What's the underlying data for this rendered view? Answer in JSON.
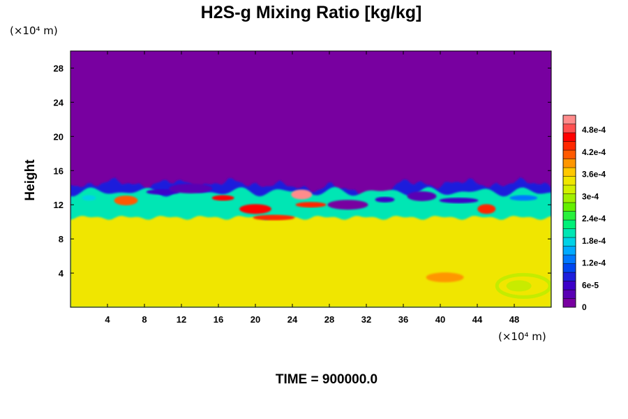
{
  "chart_data": {
    "type": "heatmap",
    "title": "H2S-g Mixing Ratio [kg/kg]",
    "xlabel": "",
    "ylabel": "Height",
    "x_unit": "(×10⁴ m)",
    "y_unit": "(×10⁴ m)",
    "xlim": [
      0,
      52
    ],
    "ylim": [
      0,
      30
    ],
    "x_ticks": [
      {
        "value": 4,
        "label": "4"
      },
      {
        "value": 8,
        "label": "8"
      },
      {
        "value": 12,
        "label": "12"
      },
      {
        "value": 16,
        "label": "16"
      },
      {
        "value": 20,
        "label": "20"
      },
      {
        "value": 24,
        "label": "24"
      },
      {
        "value": 28,
        "label": "28"
      },
      {
        "value": 32,
        "label": "32"
      },
      {
        "value": 36,
        "label": "36"
      },
      {
        "value": 40,
        "label": "40"
      },
      {
        "value": 44,
        "label": "44"
      },
      {
        "value": 48,
        "label": "48"
      }
    ],
    "y_ticks": [
      {
        "value": 4,
        "label": "4"
      },
      {
        "value": 8,
        "label": "8"
      },
      {
        "value": 12,
        "label": "12"
      },
      {
        "value": 16,
        "label": "16"
      },
      {
        "value": 20,
        "label": "20"
      },
      {
        "value": 24,
        "label": "24"
      },
      {
        "value": 28,
        "label": "28"
      }
    ],
    "colorbar": {
      "min": 0,
      "max": 0.00052,
      "ticks": [
        {
          "value": 0,
          "label": "0"
        },
        {
          "value": 6e-05,
          "label": "6e-5"
        },
        {
          "value": 0.00012,
          "label": "1.2e-4"
        },
        {
          "value": 0.00018,
          "label": "1.8e-4"
        },
        {
          "value": 0.00024,
          "label": "2.4e-4"
        },
        {
          "value": 0.0003,
          "label": "3e-4"
        },
        {
          "value": 0.00036,
          "label": "3.6e-4"
        },
        {
          "value": 0.00042,
          "label": "4.2e-4"
        },
        {
          "value": 0.00048,
          "label": "4.8e-4"
        }
      ],
      "colors": [
        "#7800a0",
        "#5a00b4",
        "#3c00c8",
        "#1e1edc",
        "#0046f0",
        "#0078ff",
        "#00aaff",
        "#00d2e6",
        "#00e6b4",
        "#00f078",
        "#28f03c",
        "#64f000",
        "#a0f000",
        "#d2f000",
        "#f0e600",
        "#ffc800",
        "#ff9600",
        "#ff5a00",
        "#ff2800",
        "#ff0000",
        "#ff5050",
        "#ff8c8c"
      ]
    },
    "field": {
      "background_value": 0,
      "lower_layer_value": 0.00035,
      "lower_layer_top": 10.5,
      "interface_height": 14.5,
      "features": [
        {
          "x": 2,
          "y": 12.8,
          "value": 0.00018
        },
        {
          "x": 6,
          "y": 12.5,
          "value": 0.00042
        },
        {
          "x": 10,
          "y": 13.5,
          "value": 6e-05
        },
        {
          "x": 13,
          "y": 13.9,
          "value": 3e-05
        },
        {
          "x": 16.5,
          "y": 12.8,
          "value": 0.00046
        },
        {
          "x": 20,
          "y": 11.5,
          "value": 0.00045
        },
        {
          "x": 22,
          "y": 10.5,
          "value": 0.00044
        },
        {
          "x": 25,
          "y": 13.2,
          "value": 0.0005
        },
        {
          "x": 26,
          "y": 12.0,
          "value": 0.00043
        },
        {
          "x": 30,
          "y": 12.0,
          "value": 2e-05
        },
        {
          "x": 34,
          "y": 12.6,
          "value": 5e-05
        },
        {
          "x": 38,
          "y": 13.0,
          "value": 4e-05
        },
        {
          "x": 42,
          "y": 12.5,
          "value": 6e-05
        },
        {
          "x": 45,
          "y": 11.5,
          "value": 0.00043
        },
        {
          "x": 49,
          "y": 12.8,
          "value": 0.00012
        },
        {
          "x": 40.5,
          "y": 3.5,
          "value": 0.0004
        }
      ]
    }
  },
  "footer": {
    "time_label": "TIME = 900000.0"
  }
}
